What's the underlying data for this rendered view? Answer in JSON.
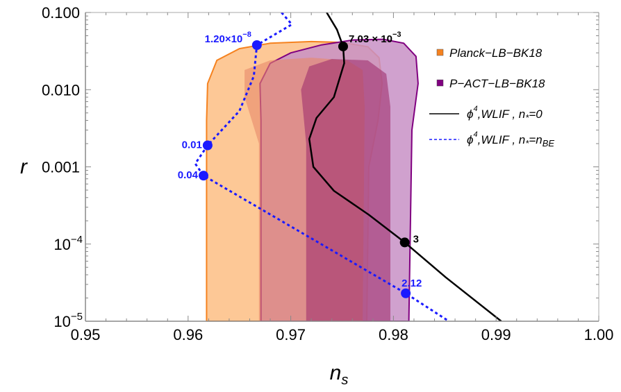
{
  "chart_data": {
    "type": "line",
    "xlabel": "n",
    "xlabel_sub": "s",
    "ylabel": "r",
    "xlim": [
      0.95,
      1.0
    ],
    "ylim": [
      1e-05,
      0.1
    ],
    "yscale": "log",
    "grid": false,
    "legend_placement": "top-right",
    "x_ticks": [
      "0.95",
      "0.96",
      "0.97",
      "0.98",
      "0.99",
      "1.00"
    ],
    "y_ticks": [
      {
        "value": 0.1,
        "label": "0.100"
      },
      {
        "value": 0.01,
        "label": "0.010"
      },
      {
        "value": 0.001,
        "label": "0.001"
      },
      {
        "value": 0.0001,
        "base": "10",
        "exp": "−4"
      },
      {
        "value": 1e-05,
        "base": "10",
        "exp": "−5"
      }
    ],
    "regions": [
      {
        "name": "Planck−LB−BK18",
        "color": "#f5821f",
        "fill": "#fdc896",
        "level": "2sigma",
        "points": [
          [
            0.9618,
            1e-05
          ],
          [
            0.9618,
            0.004
          ],
          [
            0.9619,
            0.012
          ],
          [
            0.9628,
            0.024
          ],
          [
            0.965,
            0.034
          ],
          [
            0.968,
            0.04
          ],
          [
            0.972,
            0.042
          ],
          [
            0.975,
            0.041
          ],
          [
            0.9775,
            0.036
          ],
          [
            0.9786,
            0.026
          ],
          [
            0.9789,
            0.012
          ],
          [
            0.9785,
            0.004
          ],
          [
            0.9776,
            0.001
          ],
          [
            0.9774,
            1e-05
          ]
        ]
      },
      {
        "name": "P−ACT−LB−BK18",
        "color": "#800080",
        "fill": "#c890c6",
        "level": "2sigma",
        "points": [
          [
            0.9671,
            1e-05
          ],
          [
            0.9671,
            0.004
          ],
          [
            0.967,
            0.012
          ],
          [
            0.968,
            0.022
          ],
          [
            0.97,
            0.03
          ],
          [
            0.973,
            0.038
          ],
          [
            0.976,
            0.044
          ],
          [
            0.979,
            0.045
          ],
          [
            0.981,
            0.04
          ],
          [
            0.9822,
            0.027
          ],
          [
            0.9824,
            0.012
          ],
          [
            0.9818,
            0.003
          ],
          [
            0.9815,
            1e-05
          ]
        ]
      },
      {
        "name": "Planck−LB−BK18",
        "fill": "#e7886a",
        "level": "1sigma",
        "points": [
          [
            0.9669,
            1e-05
          ],
          [
            0.9669,
            0.002
          ],
          [
            0.9655,
            0.008
          ],
          [
            0.9655,
            0.018
          ],
          [
            0.968,
            0.024
          ],
          [
            0.972,
            0.026
          ],
          [
            0.9755,
            0.024
          ],
          [
            0.977,
            0.018
          ],
          [
            0.9772,
            0.006
          ],
          [
            0.977,
            1e-05
          ]
        ]
      },
      {
        "name": "P−ACT−LB−BK18",
        "fill": "#a0306e",
        "level": "1sigma",
        "points": [
          [
            0.9715,
            1e-05
          ],
          [
            0.9715,
            0.002
          ],
          [
            0.971,
            0.01
          ],
          [
            0.9718,
            0.02
          ],
          [
            0.974,
            0.025
          ],
          [
            0.9775,
            0.024
          ],
          [
            0.9793,
            0.016
          ],
          [
            0.9797,
            0.006
          ],
          [
            0.9797,
            1e-05
          ]
        ]
      }
    ],
    "series": [
      {
        "name": "ϕ4,WLIF , n*=0",
        "color": "#000000",
        "style": "solid",
        "x": [
          0.9735,
          0.9745,
          0.9751,
          0.9752,
          0.9742,
          0.9725,
          0.9718,
          0.9722,
          0.9742,
          0.9776,
          0.9811,
          0.9851,
          0.9905
        ],
        "y": [
          0.1,
          0.06,
          0.0363,
          0.022,
          0.008,
          0.0043,
          0.0023,
          0.001,
          0.00049,
          0.00024,
          0.000105,
          3.7e-05,
          1e-05
        ]
      },
      {
        "name": "ϕ4,WLIF , n*=nBE",
        "color": "#1a1aff",
        "style": "dashed",
        "x": [
          0.9691,
          0.9701,
          0.9667,
          0.9664,
          0.965,
          0.9619,
          0.9607,
          0.9615,
          0.9812,
          0.9854
        ],
        "y": [
          0.1,
          0.07,
          0.0378,
          0.015,
          0.0053,
          0.0019,
          0.0011,
          0.00077,
          2.3e-05,
          1e-05
        ]
      }
    ],
    "annotations": [
      {
        "series": 0,
        "x": 0.9751,
        "y": 0.0363,
        "base": "7.03 × 10",
        "exp": "−3",
        "color": "#000000"
      },
      {
        "series": 0,
        "x": 0.9811,
        "y": 0.000105,
        "base": "3",
        "exp": "",
        "color": "#000000"
      },
      {
        "series": 1,
        "x": 0.9667,
        "y": 0.0378,
        "base": "1.20×10",
        "exp": "−8",
        "color": "#1a1aff"
      },
      {
        "series": 1,
        "x": 0.9619,
        "y": 0.0019,
        "base": "0.01",
        "exp": "",
        "color": "#1a1aff"
      },
      {
        "series": 1,
        "x": 0.9615,
        "y": 0.00077,
        "base": "0.04",
        "exp": "",
        "color": "#1a1aff"
      },
      {
        "series": 1,
        "x": 0.9812,
        "y": 2.3e-05,
        "base": "2.12",
        "exp": "",
        "color": "#1a1aff"
      }
    ],
    "legend": [
      {
        "label": "Planck−LB−BK18",
        "swatch": "#f58220"
      },
      {
        "label": "P−ACT−LB−BK18",
        "swatch": "#800080"
      },
      {
        "phi": "ϕ",
        "sup": "4",
        "mid": ",WLIF , n",
        "sub": "*",
        "tail": "=0",
        "tail_sub": ""
      },
      {
        "phi": "ϕ",
        "sup": "4",
        "mid": ",WLIF , n",
        "sub": "*",
        "tail": "=n",
        "tail_sub": "BE"
      }
    ]
  }
}
